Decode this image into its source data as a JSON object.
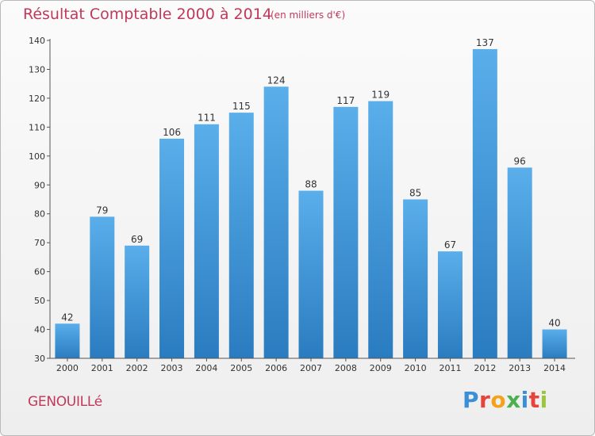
{
  "header": {
    "title": "Résultat Comptable 2000 à 2014",
    "subtitle": "(en milliers d'€)"
  },
  "footer": {
    "place": "GENOUILLé",
    "logo_letters": [
      "P",
      "r",
      "o",
      "x",
      "i",
      "t",
      "i"
    ],
    "logo_colors": [
      "#3a8fd6",
      "#e8423c",
      "#f4a11b",
      "#4caf50",
      "#3a8fd6",
      "#e8423c",
      "#9bc53d"
    ]
  },
  "chart_data": {
    "type": "bar",
    "categories": [
      "2000",
      "2001",
      "2002",
      "2003",
      "2004",
      "2005",
      "2006",
      "2007",
      "2008",
      "2009",
      "2010",
      "2011",
      "2012",
      "2013",
      "2014"
    ],
    "values": [
      42,
      79,
      69,
      106,
      111,
      115,
      124,
      88,
      117,
      119,
      85,
      67,
      137,
      96,
      40
    ],
    "ylim": [
      30,
      140
    ],
    "yticks": [
      30,
      40,
      50,
      60,
      70,
      80,
      90,
      100,
      110,
      120,
      130,
      140
    ],
    "grid": false,
    "colors": {
      "bar_top": "#5aaeea",
      "bar_bottom": "#2a7cc0",
      "label": "#333333",
      "axis": "#555555"
    }
  }
}
